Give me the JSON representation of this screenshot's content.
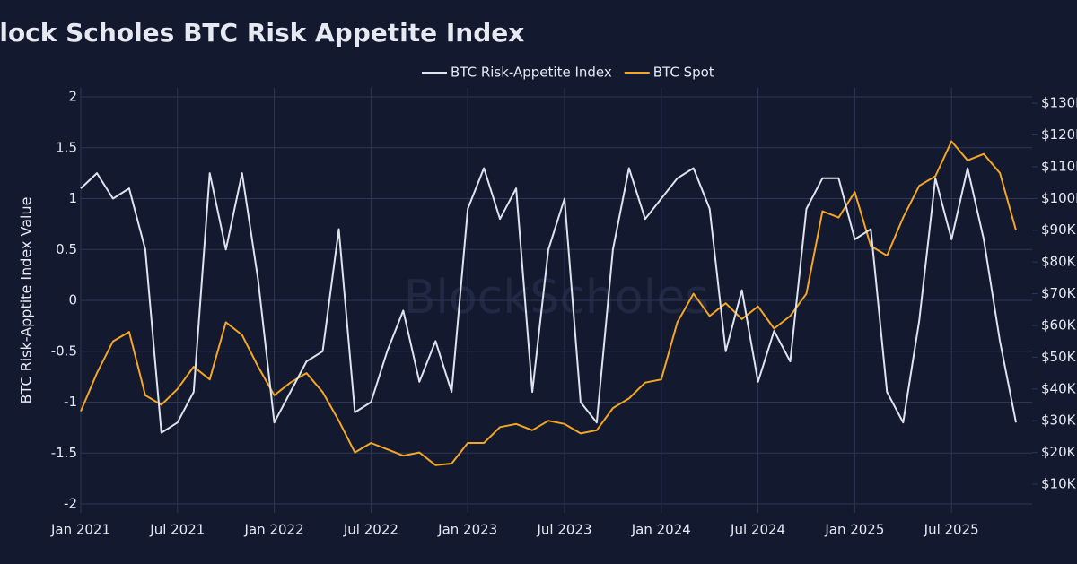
{
  "chart_data": {
    "type": "line",
    "title": "Block Scholes BTC Risk Appetite Index",
    "watermark": "BlockScholes",
    "y_label": "BTC Risk-Apptite Index Value",
    "x": [
      "2021-01",
      "2021-02",
      "2021-03",
      "2021-04",
      "2021-05",
      "2021-06",
      "2021-07",
      "2021-08",
      "2021-09",
      "2021-10",
      "2021-11",
      "2021-12",
      "2022-01",
      "2022-02",
      "2022-03",
      "2022-04",
      "2022-05",
      "2022-06",
      "2022-07",
      "2022-08",
      "2022-09",
      "2022-10",
      "2022-11",
      "2022-12",
      "2023-01",
      "2023-02",
      "2023-03",
      "2023-04",
      "2023-05",
      "2023-06",
      "2023-07",
      "2023-08",
      "2023-09",
      "2023-10",
      "2023-11",
      "2023-12",
      "2024-01",
      "2024-02",
      "2024-03",
      "2024-04",
      "2024-05",
      "2024-06",
      "2024-07",
      "2024-08",
      "2024-09",
      "2024-10",
      "2024-11",
      "2024-12",
      "2025-01",
      "2025-02",
      "2025-03",
      "2025-04",
      "2025-05",
      "2025-06",
      "2025-07",
      "2025-08",
      "2025-09",
      "2025-10",
      "2025-11"
    ],
    "xlim": [
      "2021-01",
      "2025-12"
    ],
    "xticks": [
      {
        "value": "2021-01",
        "label": "Jan 2021"
      },
      {
        "value": "2021-07",
        "label": "Jul 2021"
      },
      {
        "value": "2022-01",
        "label": "Jan 2022"
      },
      {
        "value": "2022-07",
        "label": "Jul 2022"
      },
      {
        "value": "2023-01",
        "label": "Jan 2023"
      },
      {
        "value": "2023-07",
        "label": "Jul 2023"
      },
      {
        "value": "2024-01",
        "label": "Jan 2024"
      },
      {
        "value": "2024-07",
        "label": "Jul 2024"
      },
      {
        "value": "2025-01",
        "label": "Jan 2025"
      },
      {
        "value": "2025-07",
        "label": "Jul 2025"
      }
    ],
    "ylim": [
      -2,
      2
    ],
    "yticks": [
      -2,
      -1.5,
      -1,
      -0.5,
      0,
      0.5,
      1,
      1.5,
      2
    ],
    "y2lim": [
      3800,
      132000
    ],
    "y2ticks": [
      {
        "value": 10000,
        "label": "$10K"
      },
      {
        "value": 20000,
        "label": "$20K"
      },
      {
        "value": 30000,
        "label": "$30K"
      },
      {
        "value": 40000,
        "label": "$40K"
      },
      {
        "value": 50000,
        "label": "$50K"
      },
      {
        "value": 60000,
        "label": "$60K"
      },
      {
        "value": 70000,
        "label": "$70K"
      },
      {
        "value": 80000,
        "label": "$80K"
      },
      {
        "value": 90000,
        "label": "$90K"
      },
      {
        "value": 100000,
        "label": "$100K"
      },
      {
        "value": 110000,
        "label": "$110K"
      },
      {
        "value": 120000,
        "label": "$120K"
      },
      {
        "value": 130000,
        "label": "$130K"
      }
    ],
    "grid": true,
    "legend": "top",
    "series": [
      {
        "name": "BTC Risk-Appetite Index",
        "color": "#dfe3ee",
        "axis": "y",
        "values": [
          1.1,
          1.25,
          1.0,
          1.1,
          0.5,
          -1.3,
          -1.2,
          -0.9,
          1.25,
          0.5,
          1.25,
          0.2,
          -1.2,
          -0.9,
          -0.6,
          -0.5,
          0.7,
          -1.1,
          -1.0,
          -0.5,
          -0.1,
          -0.8,
          -0.4,
          -0.9,
          0.9,
          1.3,
          0.8,
          1.1,
          -0.9,
          0.5,
          1.0,
          -1.0,
          -1.2,
          0.5,
          1.3,
          0.8,
          1.0,
          1.2,
          1.3,
          0.9,
          -0.5,
          0.1,
          -0.8,
          -0.3,
          -0.6,
          0.9,
          1.2,
          1.2,
          0.6,
          0.7,
          -0.9,
          -1.2,
          -0.2,
          1.2,
          0.6,
          1.3,
          0.6,
          -0.4,
          -1.2
        ]
      },
      {
        "name": "BTC Spot",
        "color": "#f5a623",
        "axis": "y2",
        "values": [
          33000,
          45000,
          55000,
          58000,
          38000,
          35000,
          40000,
          47000,
          43000,
          61000,
          57000,
          47000,
          38000,
          42000,
          45000,
          39000,
          30000,
          20000,
          23000,
          21000,
          19000,
          20000,
          16000,
          16500,
          23000,
          23000,
          28000,
          29000,
          27000,
          30000,
          29000,
          26000,
          27000,
          34000,
          37000,
          42000,
          43000,
          61000,
          70000,
          63000,
          67000,
          62000,
          66000,
          59000,
          63000,
          70000,
          96000,
          94000,
          102000,
          85000,
          82000,
          94000,
          104000,
          107000,
          118000,
          112000,
          114000,
          108000,
          90000
        ]
      }
    ]
  }
}
